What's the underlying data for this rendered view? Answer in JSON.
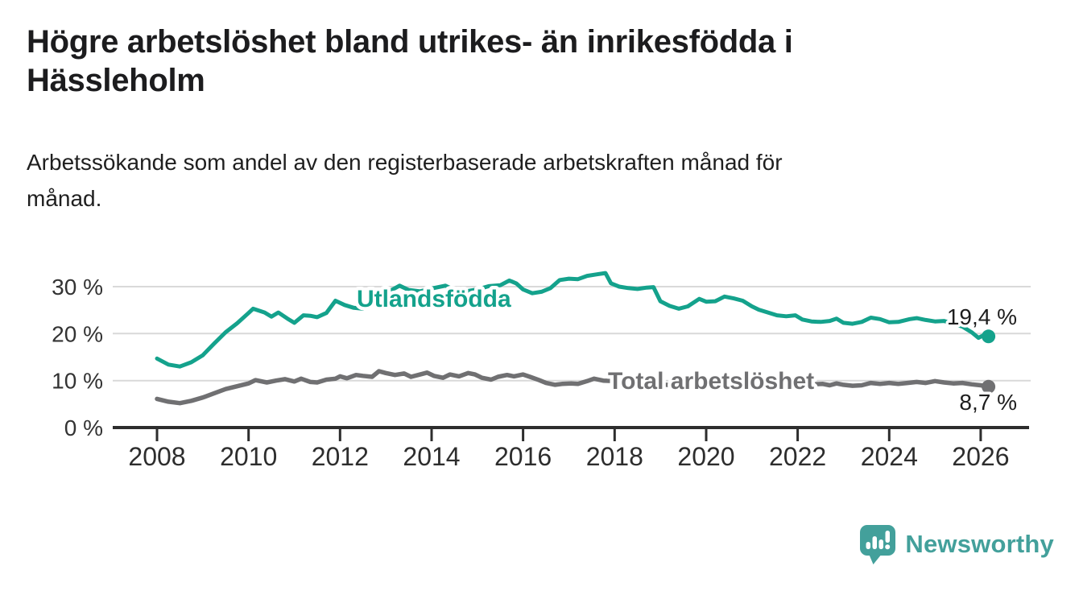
{
  "header": {
    "title_lines": [
      "Högre arbetslöshet bland utrikes- än inrikesfödda i",
      "Hässleholm"
    ],
    "subtitle_lines": [
      "Arbetssökande som andel av den registerbaserade arbetskraften månad för",
      "månad."
    ]
  },
  "colors": {
    "foreign_born_line": "#14a28c",
    "total_line": "#707072",
    "axis": "#2d2d2d",
    "gridline": "#d9d9d9",
    "text": "#1d1d1d"
  },
  "chart_data": {
    "type": "line",
    "unit": "%",
    "grid": "horizontal",
    "legend": "inline-labels",
    "xlim": [
      2007.0,
      2027.1
    ],
    "ylim": [
      0,
      33
    ],
    "x_ticks": [
      2008,
      2010,
      2012,
      2014,
      2016,
      2018,
      2020,
      2022,
      2024,
      2026
    ],
    "y_ticks": [
      {
        "value": 0,
        "label": "0 %"
      },
      {
        "value": 10,
        "label": "10 %"
      },
      {
        "value": 20,
        "label": "20 %"
      },
      {
        "value": 30,
        "label": "30 %"
      }
    ],
    "series": [
      {
        "name": "Utlandsfödda",
        "color": "#14a28c",
        "end_label": "19,4 %",
        "end_value": 19.4,
        "points": [
          [
            2008.0,
            14.7
          ],
          [
            2008.25,
            13.4
          ],
          [
            2008.5,
            13.0
          ],
          [
            2008.75,
            13.9
          ],
          [
            2009.0,
            15.4
          ],
          [
            2009.25,
            17.9
          ],
          [
            2009.5,
            20.3
          ],
          [
            2009.75,
            22.2
          ],
          [
            2010.0,
            24.4
          ],
          [
            2010.1,
            25.3
          ],
          [
            2010.35,
            24.5
          ],
          [
            2010.5,
            23.6
          ],
          [
            2010.65,
            24.5
          ],
          [
            2010.85,
            23.2
          ],
          [
            2011.0,
            22.3
          ],
          [
            2011.2,
            23.9
          ],
          [
            2011.35,
            23.8
          ],
          [
            2011.5,
            23.5
          ],
          [
            2011.7,
            24.4
          ],
          [
            2011.9,
            27.0
          ],
          [
            2012.1,
            26.1
          ],
          [
            2012.3,
            25.5
          ],
          [
            2012.5,
            25.3
          ],
          [
            2012.75,
            26.5
          ],
          [
            2013.0,
            28.6
          ],
          [
            2013.3,
            30.2
          ],
          [
            2013.5,
            29.3
          ],
          [
            2013.75,
            29.0
          ],
          [
            2014.0,
            29.6
          ],
          [
            2014.3,
            30.2
          ],
          [
            2014.5,
            29.3
          ],
          [
            2014.75,
            29.0
          ],
          [
            2015.0,
            29.4
          ],
          [
            2015.25,
            30.1
          ],
          [
            2015.5,
            30.3
          ],
          [
            2015.7,
            31.3
          ],
          [
            2015.85,
            30.7
          ],
          [
            2016.0,
            29.4
          ],
          [
            2016.2,
            28.6
          ],
          [
            2016.4,
            28.9
          ],
          [
            2016.6,
            29.7
          ],
          [
            2016.8,
            31.4
          ],
          [
            2017.0,
            31.7
          ],
          [
            2017.2,
            31.6
          ],
          [
            2017.4,
            32.3
          ],
          [
            2017.6,
            32.6
          ],
          [
            2017.8,
            32.9
          ],
          [
            2017.92,
            30.7
          ],
          [
            2018.1,
            30.0
          ],
          [
            2018.3,
            29.7
          ],
          [
            2018.5,
            29.5
          ],
          [
            2018.7,
            29.8
          ],
          [
            2018.85,
            29.9
          ],
          [
            2019.0,
            26.9
          ],
          [
            2019.2,
            25.9
          ],
          [
            2019.4,
            25.3
          ],
          [
            2019.6,
            25.8
          ],
          [
            2019.85,
            27.4
          ],
          [
            2020.0,
            26.8
          ],
          [
            2020.2,
            26.9
          ],
          [
            2020.4,
            27.9
          ],
          [
            2020.6,
            27.5
          ],
          [
            2020.8,
            27.0
          ],
          [
            2021.0,
            25.8
          ],
          [
            2021.15,
            25.1
          ],
          [
            2021.35,
            24.5
          ],
          [
            2021.55,
            23.9
          ],
          [
            2021.75,
            23.7
          ],
          [
            2021.95,
            23.9
          ],
          [
            2022.1,
            23.0
          ],
          [
            2022.3,
            22.6
          ],
          [
            2022.5,
            22.5
          ],
          [
            2022.7,
            22.7
          ],
          [
            2022.85,
            23.2
          ],
          [
            2023.0,
            22.3
          ],
          [
            2023.2,
            22.1
          ],
          [
            2023.4,
            22.5
          ],
          [
            2023.6,
            23.4
          ],
          [
            2023.8,
            23.1
          ],
          [
            2024.0,
            22.4
          ],
          [
            2024.2,
            22.5
          ],
          [
            2024.45,
            23.1
          ],
          [
            2024.6,
            23.3
          ],
          [
            2024.8,
            22.9
          ],
          [
            2025.0,
            22.6
          ],
          [
            2025.2,
            22.7
          ],
          [
            2025.4,
            22.1
          ],
          [
            2025.6,
            21.5
          ],
          [
            2025.8,
            20.3
          ],
          [
            2025.95,
            19.1
          ],
          [
            2026.05,
            19.6
          ],
          [
            2026.17,
            19.4
          ]
        ]
      },
      {
        "name": "Total arbetslöshet",
        "color": "#707072",
        "end_label": "8,7 %",
        "end_value": 8.7,
        "points": [
          [
            2008.0,
            6.1
          ],
          [
            2008.25,
            5.5
          ],
          [
            2008.5,
            5.2
          ],
          [
            2008.75,
            5.7
          ],
          [
            2009.0,
            6.4
          ],
          [
            2009.25,
            7.3
          ],
          [
            2009.5,
            8.2
          ],
          [
            2009.75,
            8.8
          ],
          [
            2010.0,
            9.4
          ],
          [
            2010.15,
            10.1
          ],
          [
            2010.4,
            9.6
          ],
          [
            2010.6,
            10.0
          ],
          [
            2010.8,
            10.3
          ],
          [
            2011.0,
            9.8
          ],
          [
            2011.15,
            10.4
          ],
          [
            2011.35,
            9.7
          ],
          [
            2011.5,
            9.6
          ],
          [
            2011.7,
            10.2
          ],
          [
            2011.9,
            10.4
          ],
          [
            2012.0,
            10.9
          ],
          [
            2012.15,
            10.5
          ],
          [
            2012.35,
            11.2
          ],
          [
            2012.5,
            11.0
          ],
          [
            2012.7,
            10.8
          ],
          [
            2012.85,
            12.0
          ],
          [
            2013.0,
            11.6
          ],
          [
            2013.2,
            11.2
          ],
          [
            2013.4,
            11.5
          ],
          [
            2013.55,
            10.8
          ],
          [
            2013.75,
            11.3
          ],
          [
            2013.9,
            11.7
          ],
          [
            2014.05,
            11.0
          ],
          [
            2014.25,
            10.6
          ],
          [
            2014.4,
            11.3
          ],
          [
            2014.6,
            10.9
          ],
          [
            2014.8,
            11.6
          ],
          [
            2014.95,
            11.3
          ],
          [
            2015.1,
            10.6
          ],
          [
            2015.3,
            10.2
          ],
          [
            2015.45,
            10.8
          ],
          [
            2015.65,
            11.2
          ],
          [
            2015.8,
            10.9
          ],
          [
            2016.0,
            11.3
          ],
          [
            2016.15,
            10.8
          ],
          [
            2016.35,
            10.1
          ],
          [
            2016.5,
            9.5
          ],
          [
            2016.7,
            9.1
          ],
          [
            2016.85,
            9.3
          ],
          [
            2017.05,
            9.4
          ],
          [
            2017.2,
            9.3
          ],
          [
            2017.4,
            9.9
          ],
          [
            2017.55,
            10.4
          ],
          [
            2017.75,
            10.0
          ],
          [
            2018.0,
            9.9
          ],
          [
            2018.25,
            9.7
          ],
          [
            2018.5,
            9.5
          ],
          [
            2018.75,
            9.3
          ],
          [
            2019.0,
            9.2
          ],
          [
            2019.25,
            9.0
          ],
          [
            2019.5,
            9.1
          ],
          [
            2019.75,
            9.3
          ],
          [
            2020.0,
            9.5
          ],
          [
            2020.25,
            10.2
          ],
          [
            2020.5,
            10.4
          ],
          [
            2020.75,
            10.1
          ],
          [
            2021.0,
            9.9
          ],
          [
            2021.25,
            9.7
          ],
          [
            2021.5,
            9.5
          ],
          [
            2021.75,
            9.4
          ],
          [
            2022.0,
            9.3
          ],
          [
            2022.25,
            9.2
          ],
          [
            2022.55,
            9.3
          ],
          [
            2022.7,
            9.0
          ],
          [
            2022.85,
            9.4
          ],
          [
            2023.0,
            9.1
          ],
          [
            2023.2,
            8.9
          ],
          [
            2023.4,
            9.0
          ],
          [
            2023.6,
            9.5
          ],
          [
            2023.8,
            9.3
          ],
          [
            2024.0,
            9.5
          ],
          [
            2024.2,
            9.3
          ],
          [
            2024.4,
            9.5
          ],
          [
            2024.6,
            9.7
          ],
          [
            2024.8,
            9.5
          ],
          [
            2025.0,
            9.9
          ],
          [
            2025.2,
            9.6
          ],
          [
            2025.4,
            9.4
          ],
          [
            2025.6,
            9.5
          ],
          [
            2025.8,
            9.2
          ],
          [
            2026.0,
            9.0
          ],
          [
            2026.17,
            8.7
          ]
        ]
      }
    ]
  },
  "branding": {
    "logo_text": "Newsworthy",
    "logo_color": "#43a09b",
    "logo_icon": "speech-bubble-bar-chart-icon"
  }
}
